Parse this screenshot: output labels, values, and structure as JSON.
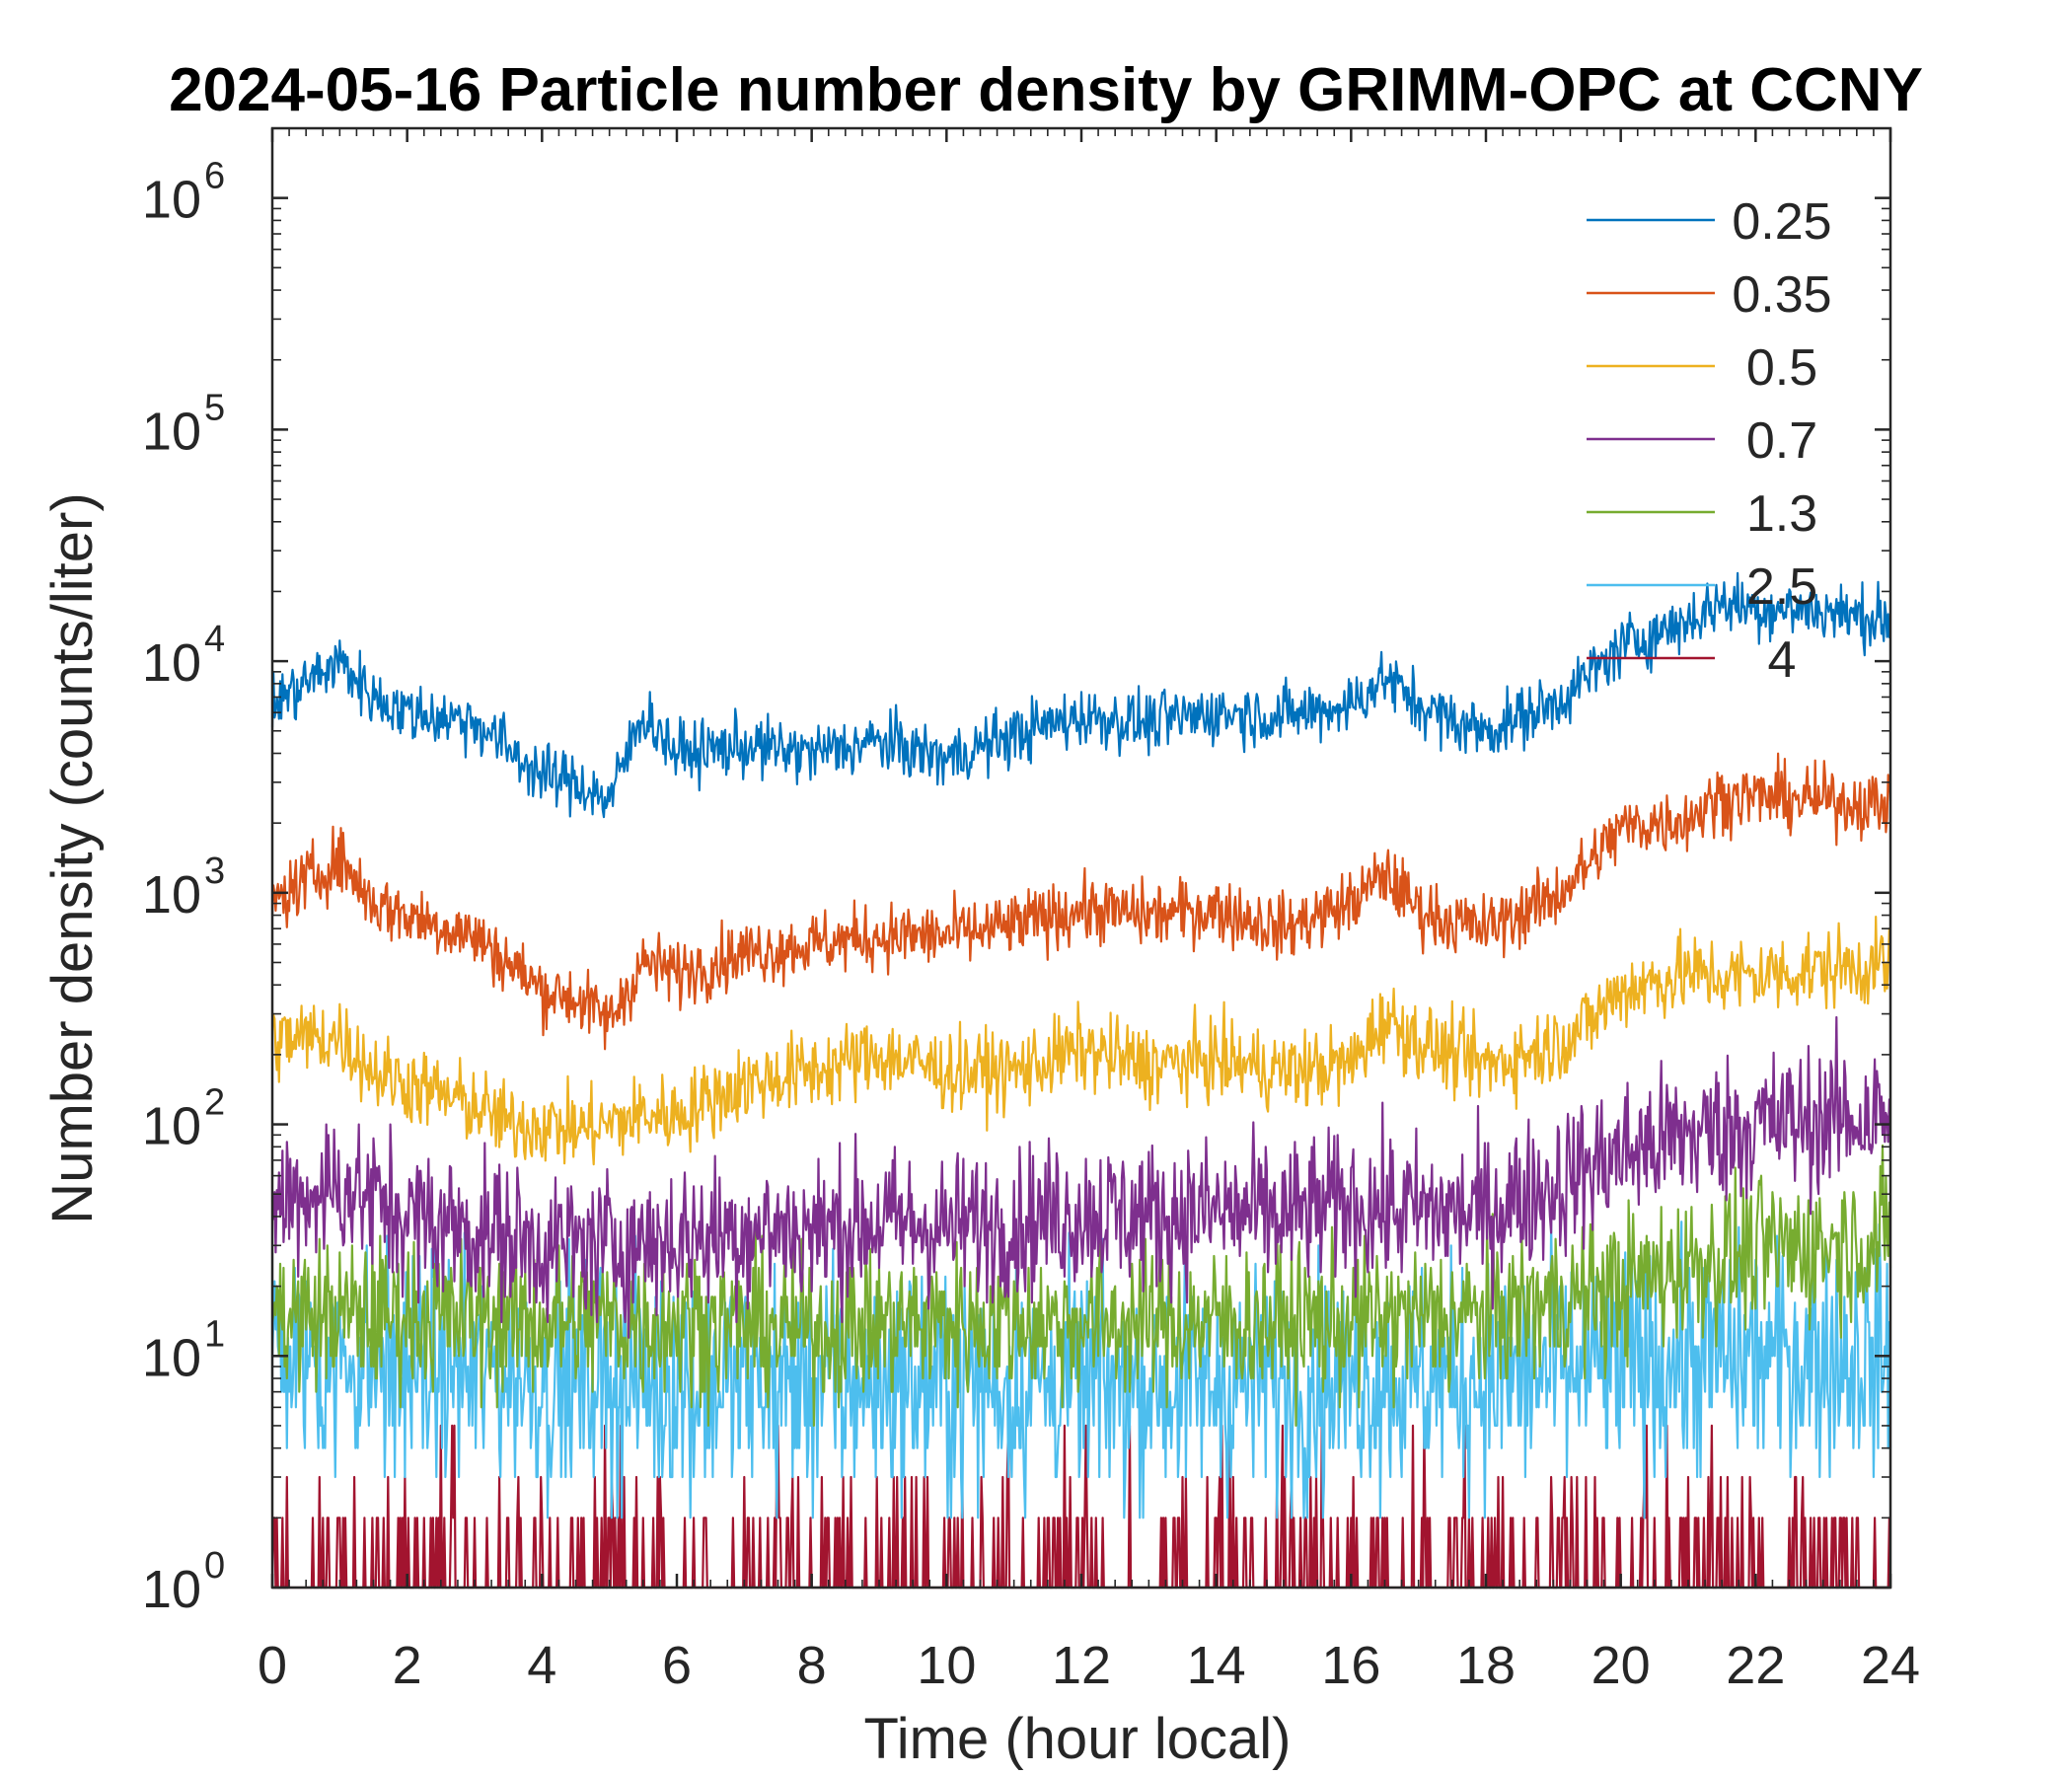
{
  "chart_data": {
    "type": "line",
    "title": "2024-05-16 Particle number density by GRIMM-OPC at CCNY",
    "xlabel": "Time (hour local)",
    "ylabel": "Number density (counts/liter)",
    "xlim": [
      0,
      24
    ],
    "ylim": [
      1,
      2000000
    ],
    "yscale": "log",
    "xticks": [
      "0",
      "2",
      "4",
      "6",
      "8",
      "10",
      "12",
      "14",
      "16",
      "18",
      "20",
      "22",
      "24"
    ],
    "yticks": [
      {
        "base": "10",
        "exp": "0"
      },
      {
        "base": "10",
        "exp": "1"
      },
      {
        "base": "10",
        "exp": "2"
      },
      {
        "base": "10",
        "exp": "3"
      },
      {
        "base": "10",
        "exp": "4"
      },
      {
        "base": "10",
        "exp": "5"
      },
      {
        "base": "10",
        "exp": "6"
      }
    ],
    "legend_position": "top-right",
    "series": [
      {
        "name": "0.25",
        "color": "#0072BD",
        "noise": 0.13,
        "x": [
          0,
          1,
          1.5,
          2,
          3,
          3.5,
          4,
          4.5,
          5,
          5.5,
          6,
          7,
          8,
          9,
          10,
          11,
          12,
          13,
          14,
          15,
          16,
          16.5,
          17,
          17.5,
          18,
          19,
          19.5,
          20,
          21,
          21.5,
          22,
          23,
          24
        ],
        "y": [
          6500,
          10000,
          7000,
          6000,
          5500,
          4200,
          3200,
          3000,
          2500,
          6000,
          4000,
          4300,
          4000,
          4500,
          3800,
          4800,
          5800,
          5400,
          6000,
          5800,
          6500,
          8500,
          6500,
          5500,
          5000,
          6500,
          8500,
          11500,
          15000,
          18000,
          17000,
          16500,
          15000
        ]
      },
      {
        "name": "0.35",
        "color": "#D95319",
        "noise": 0.14,
        "x": [
          0,
          1,
          1.5,
          2,
          3,
          3.5,
          4,
          4.5,
          5,
          5.5,
          6,
          7,
          8,
          9,
          10,
          11,
          12,
          13,
          14,
          15,
          16,
          16.5,
          17,
          17.5,
          18,
          19,
          19.5,
          20,
          21,
          21.5,
          22,
          23,
          24
        ],
        "y": [
          900,
          1400,
          900,
          800,
          650,
          500,
          380,
          350,
          280,
          500,
          450,
          550,
          600,
          650,
          650,
          720,
          850,
          800,
          850,
          700,
          900,
          1200,
          850,
          750,
          700,
          950,
          1300,
          1900,
          2100,
          2600,
          2600,
          2500,
          2400
        ]
      },
      {
        "name": "0.5",
        "color": "#EDB120",
        "noise": 0.17,
        "x": [
          0,
          1,
          1.5,
          2,
          3,
          3.5,
          4,
          4.5,
          5,
          5.5,
          6,
          7,
          8,
          9,
          10,
          11,
          12,
          13,
          14,
          15,
          16,
          16.5,
          17,
          17.5,
          18,
          19,
          19.5,
          20,
          21,
          21.5,
          22,
          23,
          24
        ],
        "y": [
          230,
          240,
          170,
          150,
          120,
          100,
          100,
          95,
          100,
          110,
          110,
          150,
          170,
          200,
          170,
          170,
          210,
          180,
          190,
          170,
          180,
          290,
          230,
          200,
          180,
          220,
          270,
          380,
          450,
          430,
          440,
          470,
          490
        ]
      },
      {
        "name": "0.7",
        "color": "#7E2F8E",
        "noise": 0.32,
        "x": [
          0,
          1,
          2,
          3,
          4,
          5,
          6,
          7,
          8,
          9,
          10,
          11,
          12,
          13,
          14,
          15,
          16,
          17,
          18,
          19,
          20,
          21,
          22,
          23,
          24
        ],
        "y": [
          45,
          55,
          40,
          35,
          30,
          30,
          32,
          35,
          35,
          38,
          36,
          38,
          42,
          40,
          42,
          40,
          45,
          42,
          42,
          55,
          75,
          90,
          100,
          105,
          110
        ]
      },
      {
        "name": "1.3",
        "color": "#77AC30",
        "noise": 0.32,
        "x": [
          0,
          2,
          4,
          6,
          8,
          10,
          12,
          14,
          16,
          18,
          19,
          20,
          21,
          22,
          23,
          24
        ],
        "y": [
          15,
          15,
          14,
          14,
          13,
          14,
          14,
          14,
          14,
          15,
          17,
          20,
          25,
          28,
          30,
          32
        ]
      },
      {
        "name": "2.5",
        "color": "#4DBEEE",
        "noise": 0.48,
        "x": [
          0,
          2,
          4,
          6,
          8,
          10,
          12,
          14,
          16,
          18,
          20,
          22,
          24
        ],
        "y": [
          10,
          9,
          8,
          7.5,
          7.5,
          7.5,
          7.5,
          7.5,
          8,
          8,
          9,
          10,
          10
        ]
      },
      {
        "name": "4",
        "color": "#A2142F",
        "noise": 0.0,
        "x": [
          0,
          24
        ],
        "y": [
          1,
          1
        ]
      }
    ]
  }
}
